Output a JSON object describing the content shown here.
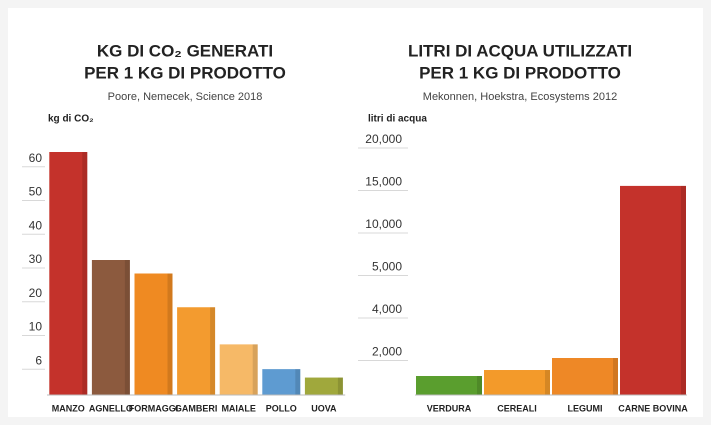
{
  "chart_data": [
    {
      "type": "bar",
      "title": [
        "KG DI CO₂ GENERATI",
        "PER 1 KG DI PRODOTTO"
      ],
      "subtitle": "Poore, Nemecek, Science 2018",
      "y_label": "kg di CO₂",
      "categories": [
        "MANZO",
        "AGNELLO",
        "FORMAGGI",
        "GAMBERI",
        "MAIALE",
        "POLLO",
        "UOVA"
      ],
      "values": [
        62,
        30,
        26,
        16,
        8,
        4.6,
        3.1
      ],
      "colors": [
        "#c4322b",
        "#8c5a3e",
        "#ef8a22",
        "#f39b2f",
        "#f6b967",
        "#5e9bd1",
        "#a0a83c"
      ],
      "ylim": [
        0,
        70
      ],
      "yticks": [
        6,
        10,
        20,
        30,
        40,
        50,
        60
      ],
      "grid": true
    },
    {
      "type": "bar",
      "title": [
        "LITRI DI ACQUA UTILIZZATI",
        "PER 1 KG DI PRODOTTO"
      ],
      "subtitle": "Mekonnen, Hoekstra, Ecosystems 2012",
      "y_label": "litri di acqua",
      "categories": [
        "VERDURA",
        "CEREALI",
        "LEGUMI",
        "CARNE BOVINA"
      ],
      "values": [
        894,
        1176,
        1741,
        14600
      ],
      "colors": [
        "#5a9e2e",
        "#f39a2a",
        "#ee8826",
        "#c4322b"
      ],
      "ylim": [
        0,
        20000
      ],
      "yticks": [
        {
          "value": 2000,
          "label": "2,000"
        },
        {
          "value": 4000,
          "label": "4,000"
        },
        {
          "value": 5000,
          "label": "5,000"
        },
        {
          "value": 10000,
          "label": "10,000"
        },
        {
          "value": 15000,
          "label": "15,000"
        },
        {
          "value": 20000,
          "label": "20,000"
        }
      ],
      "grid": true
    }
  ]
}
